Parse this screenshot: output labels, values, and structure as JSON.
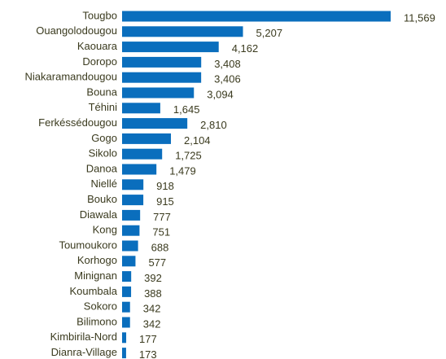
{
  "chart_data": {
    "type": "barh",
    "categories": [
      "Tougbo",
      "Ouangolodougou",
      "Kaouara",
      "Doropo",
      "Niakaramandougou",
      "Bouna",
      "Téhini",
      "Ferkéssédougou",
      "Gogo",
      "Sikolo",
      "Danoa",
      "Niellé",
      "Bouko",
      "Diawala",
      "Kong",
      "Toumoukoro",
      "Korhogo",
      "Minignan",
      "Koumbala",
      "Sokoro",
      "Bilimono",
      "Kimbirila-Nord",
      "Dianra-Village"
    ],
    "values": [
      11569,
      5207,
      4162,
      3408,
      3406,
      3094,
      1645,
      2810,
      2104,
      1725,
      1479,
      918,
      915,
      777,
      751,
      688,
      577,
      392,
      388,
      342,
      342,
      177,
      173
    ],
    "value_labels": [
      "11,569",
      "5,207",
      "4,162",
      "3,408",
      "3,406",
      "3,094",
      "1,645",
      "2,810",
      "2,104",
      "1,725",
      "1,479",
      "918",
      "915",
      "777",
      "751",
      "688",
      "577",
      "392",
      "388",
      "342",
      "342",
      "177",
      "173"
    ],
    "color": "#0a6ebd"
  }
}
